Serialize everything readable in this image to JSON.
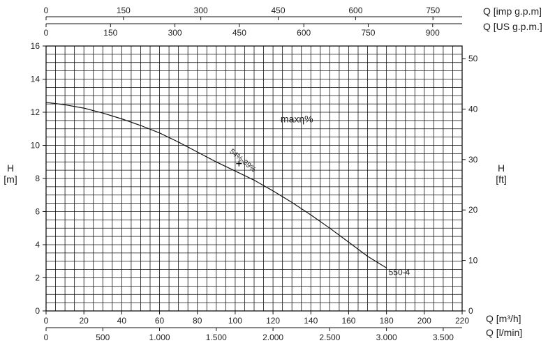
{
  "chart_data": {
    "type": "line",
    "x_axes": {
      "bottom_primary": {
        "label": "Q [m³/h]",
        "ticks": [
          0,
          20,
          40,
          60,
          80,
          100,
          120,
          140,
          160,
          180,
          200,
          220
        ],
        "range": [
          0,
          220
        ]
      },
      "bottom_secondary": {
        "label": "Q [l/min]",
        "ticks": [
          "0",
          "500",
          "1.000",
          "1.500",
          "2.000",
          "2.500",
          "3.000",
          "3.500"
        ],
        "tick_values": [
          0,
          500,
          1000,
          1500,
          2000,
          2500,
          3000,
          3500
        ]
      },
      "top_outer": {
        "label": "Q [imp g.p.m]",
        "ticks": [
          0,
          150,
          300,
          450,
          600,
          750
        ]
      },
      "top_inner": {
        "label": "Q [US g.p.m.]",
        "ticks": [
          0,
          150,
          300,
          450,
          600,
          750,
          900
        ]
      }
    },
    "y_axes": {
      "left": {
        "label_line1": "H",
        "label_line2": "[m]",
        "ticks": [
          0,
          2,
          4,
          6,
          8,
          10,
          12,
          14,
          16
        ],
        "range": [
          0,
          16
        ]
      },
      "right": {
        "label_line1": "H",
        "label_line2": "[ft]",
        "ticks": [
          0,
          10,
          20,
          30,
          40,
          50
        ]
      }
    },
    "grid": true,
    "series": [
      {
        "name": "550-4",
        "x": [
          0,
          10,
          20,
          30,
          40,
          50,
          60,
          70,
          80,
          90,
          100,
          110,
          120,
          130,
          140,
          150,
          160,
          170,
          180
        ],
        "y": [
          12.6,
          12.45,
          12.25,
          11.95,
          11.6,
          11.2,
          10.75,
          10.2,
          9.6,
          9.0,
          8.45,
          7.9,
          7.25,
          6.55,
          5.8,
          5.0,
          4.15,
          3.3,
          2.6
        ],
        "color": "#111111"
      }
    ],
    "annotations": [
      {
        "text": "maxη%",
        "x": 124,
        "y": 11.4
      },
      {
        "text": "54%-39%",
        "x": 102,
        "y": 9.3,
        "marker_x": 102,
        "marker_y": 8.9
      }
    ]
  }
}
